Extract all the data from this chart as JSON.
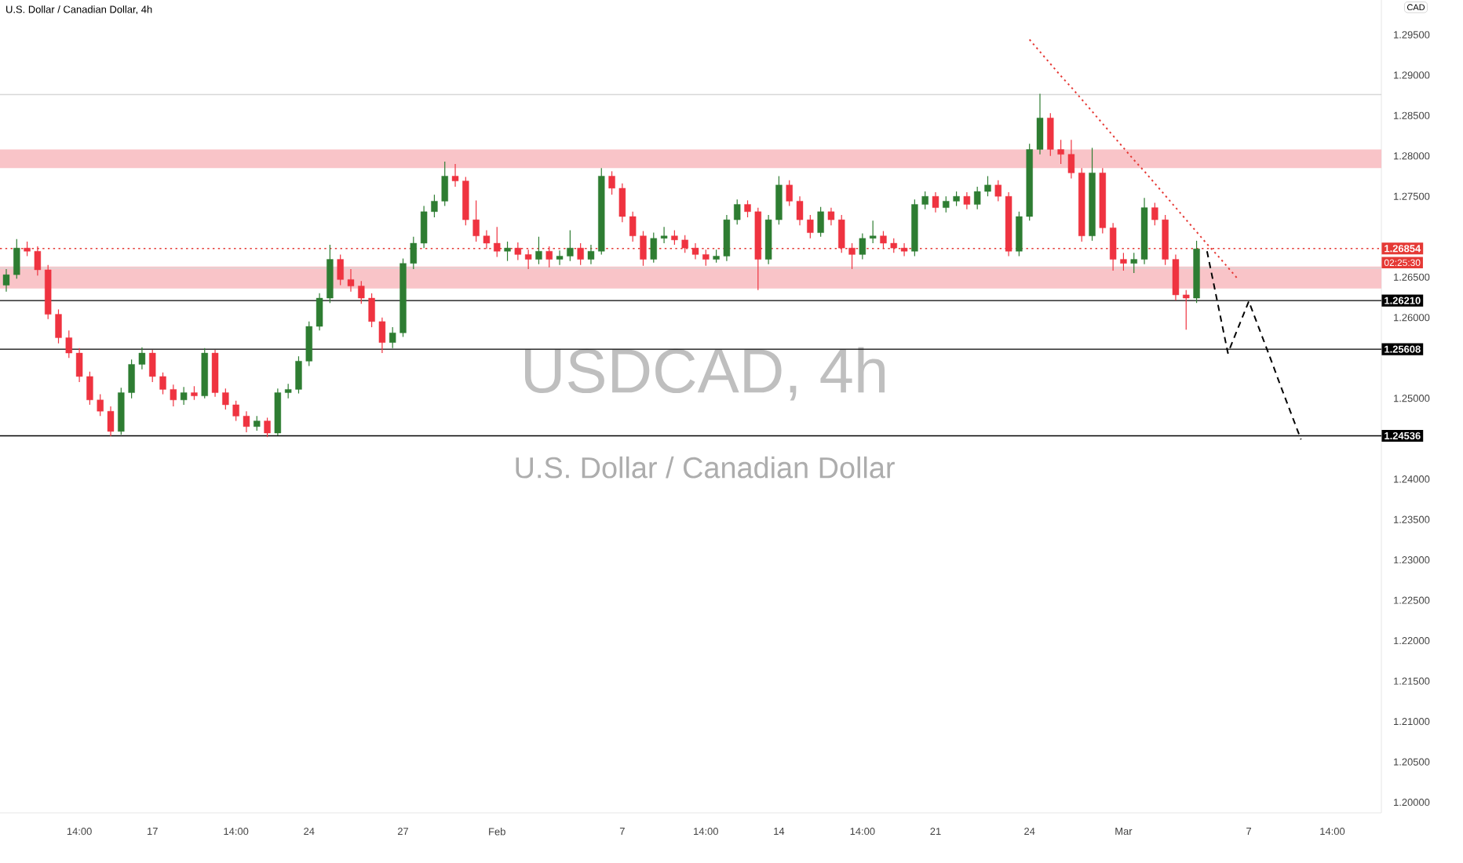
{
  "chart_data": {
    "type": "candlestick",
    "title": "U.S. Dollar / Canadian Dollar, 4h",
    "ylabel": "CAD",
    "annotations": [
      "USDCAD, 4h",
      "U.S. Dollar / Canadian Dollar",
      "02:25:30"
    ],
    "ylim": [
      1.1987,
      1.2993
    ],
    "yticks": [
      {
        "value": 1.2,
        "label": "1.20000"
      },
      {
        "value": 1.205,
        "label": "1.20500"
      },
      {
        "value": 1.21,
        "label": "1.21000"
      },
      {
        "value": 1.215,
        "label": "1.21500"
      },
      {
        "value": 1.22,
        "label": "1.22000"
      },
      {
        "value": 1.225,
        "label": "1.22500"
      },
      {
        "value": 1.23,
        "label": "1.23000"
      },
      {
        "value": 1.235,
        "label": "1.23500"
      },
      {
        "value": 1.24,
        "label": "1.24000"
      },
      {
        "value": 1.25,
        "label": "1.25000"
      },
      {
        "value": 1.26,
        "label": "1.26000"
      },
      {
        "value": 1.265,
        "label": "1.26500"
      },
      {
        "value": 1.275,
        "label": "1.27500"
      },
      {
        "value": 1.28,
        "label": "1.28000"
      },
      {
        "value": 1.285,
        "label": "1.28500"
      },
      {
        "value": 1.29,
        "label": "1.29000"
      },
      {
        "value": 1.295,
        "label": "1.29500"
      }
    ],
    "categories": [
      null,
      null,
      null,
      null,
      null,
      null,
      null,
      "14:00",
      null,
      null,
      null,
      null,
      null,
      null,
      "17",
      null,
      null,
      null,
      null,
      null,
      null,
      null,
      "14:00",
      null,
      null,
      null,
      null,
      null,
      null,
      "24",
      null,
      null,
      null,
      null,
      null,
      null,
      null,
      null,
      "27",
      null,
      null,
      null,
      null,
      null,
      null,
      null,
      null,
      "Feb",
      null,
      null,
      null,
      null,
      null,
      null,
      null,
      null,
      null,
      null,
      null,
      "7",
      null,
      null,
      null,
      null,
      null,
      null,
      null,
      "14:00",
      null,
      null,
      null,
      null,
      null,
      null,
      "14",
      null,
      null,
      null,
      null,
      null,
      null,
      null,
      "14:00",
      null,
      null,
      null,
      null,
      null,
      null,
      "21",
      null,
      null,
      null,
      null,
      null,
      null,
      null,
      null,
      "24",
      null,
      null,
      null,
      null,
      null,
      null,
      null,
      null,
      "Mar",
      null,
      null,
      null,
      null,
      null,
      null,
      null,
      null,
      null,
      null,
      null,
      "7",
      null,
      null,
      null,
      null,
      null,
      null,
      null,
      "14:00",
      null,
      null,
      null
    ],
    "ohlc": [
      [
        1.264,
        1.266,
        1.2632,
        1.2653
      ],
      [
        1.2653,
        1.2697,
        1.2648,
        1.2686
      ],
      [
        1.2686,
        1.2694,
        1.2676,
        1.2682
      ],
      [
        1.2682,
        1.2688,
        1.2652,
        1.2659
      ],
      [
        1.2659,
        1.2665,
        1.2598,
        1.2604
      ],
      [
        1.2604,
        1.261,
        1.2568,
        1.2575
      ],
      [
        1.2575,
        1.2584,
        1.255,
        1.2556
      ],
      [
        1.2556,
        1.2562,
        1.252,
        1.2527
      ],
      [
        1.2527,
        1.2533,
        1.2492,
        1.2498
      ],
      [
        1.2498,
        1.2505,
        1.2478,
        1.2484
      ],
      [
        1.2484,
        1.249,
        1.2453,
        1.2459
      ],
      [
        1.2459,
        1.2513,
        1.2455,
        1.2507
      ],
      [
        1.2507,
        1.2548,
        1.25,
        1.2542
      ],
      [
        1.2542,
        1.2563,
        1.2536,
        1.2556
      ],
      [
        1.2556,
        1.256,
        1.252,
        1.2527
      ],
      [
        1.2527,
        1.2532,
        1.2505,
        1.2511
      ],
      [
        1.2511,
        1.2517,
        1.249,
        1.2498
      ],
      [
        1.2498,
        1.2514,
        1.2492,
        1.2507
      ],
      [
        1.2507,
        1.2515,
        1.2498,
        1.2503
      ],
      [
        1.2503,
        1.2562,
        1.25,
        1.2556
      ],
      [
        1.2556,
        1.256,
        1.2502,
        1.2507
      ],
      [
        1.2507,
        1.2512,
        1.2486,
        1.2492
      ],
      [
        1.2492,
        1.2497,
        1.2472,
        1.2478
      ],
      [
        1.2478,
        1.2484,
        1.2458,
        1.2465
      ],
      [
        1.2465,
        1.2478,
        1.246,
        1.2472
      ],
      [
        1.2472,
        1.2476,
        1.2452,
        1.2457
      ],
      [
        1.2457,
        1.2512,
        1.2454,
        1.2507
      ],
      [
        1.2507,
        1.2518,
        1.25,
        1.2511
      ],
      [
        1.2511,
        1.2552,
        1.2506,
        1.2546
      ],
      [
        1.2546,
        1.2595,
        1.254,
        1.2589
      ],
      [
        1.2589,
        1.263,
        1.2584,
        1.2624
      ],
      [
        1.2624,
        1.269,
        1.2618,
        1.2672
      ],
      [
        1.2672,
        1.2678,
        1.264,
        1.2647
      ],
      [
        1.2647,
        1.266,
        1.2632,
        1.2639
      ],
      [
        1.2639,
        1.2645,
        1.2617,
        1.2624
      ],
      [
        1.2624,
        1.263,
        1.2588,
        1.2595
      ],
      [
        1.2595,
        1.26,
        1.2556,
        1.2569
      ],
      [
        1.2569,
        1.2588,
        1.2562,
        1.2581
      ],
      [
        1.2581,
        1.2673,
        1.2576,
        1.2667
      ],
      [
        1.2667,
        1.27,
        1.266,
        1.2692
      ],
      [
        1.2692,
        1.2738,
        1.2686,
        1.2731
      ],
      [
        1.2731,
        1.2752,
        1.2724,
        1.2744
      ],
      [
        1.2744,
        1.2793,
        1.2738,
        1.2775
      ],
      [
        1.2775,
        1.279,
        1.2762,
        1.2769
      ],
      [
        1.2769,
        1.2774,
        1.2714,
        1.2721
      ],
      [
        1.2721,
        1.2745,
        1.2694,
        1.2701
      ],
      [
        1.2701,
        1.2708,
        1.2685,
        1.2692
      ],
      [
        1.2692,
        1.2712,
        1.2675,
        1.2682
      ],
      [
        1.2682,
        1.2694,
        1.267,
        1.2686
      ],
      [
        1.2686,
        1.2693,
        1.2671,
        1.2678
      ],
      [
        1.2678,
        1.2684,
        1.266,
        1.2672
      ],
      [
        1.2672,
        1.27,
        1.2666,
        1.2682
      ],
      [
        1.2682,
        1.2688,
        1.2662,
        1.2672
      ],
      [
        1.2672,
        1.2683,
        1.2665,
        1.2676
      ],
      [
        1.2676,
        1.2708,
        1.267,
        1.2686
      ],
      [
        1.2686,
        1.2692,
        1.2665,
        1.2672
      ],
      [
        1.2672,
        1.269,
        1.2666,
        1.2682
      ],
      [
        1.2682,
        1.2785,
        1.2678,
        1.2775
      ],
      [
        1.2775,
        1.2781,
        1.2752,
        1.276
      ],
      [
        1.276,
        1.2766,
        1.2718,
        1.2725
      ],
      [
        1.2725,
        1.2731,
        1.2694,
        1.2701
      ],
      [
        1.2701,
        1.2707,
        1.2664,
        1.2672
      ],
      [
        1.2672,
        1.2705,
        1.2668,
        1.2698
      ],
      [
        1.2698,
        1.2712,
        1.2692,
        1.2701
      ],
      [
        1.2701,
        1.2708,
        1.269,
        1.2696
      ],
      [
        1.2696,
        1.2702,
        1.268,
        1.2686
      ],
      [
        1.2686,
        1.2692,
        1.2672,
        1.2678
      ],
      [
        1.2678,
        1.2684,
        1.2664,
        1.2672
      ],
      [
        1.2672,
        1.2684,
        1.2668,
        1.2676
      ],
      [
        1.2676,
        1.2727,
        1.267,
        1.2721
      ],
      [
        1.2721,
        1.2746,
        1.2715,
        1.274
      ],
      [
        1.274,
        1.2745,
        1.2724,
        1.2731
      ],
      [
        1.2731,
        1.2736,
        1.2634,
        1.2672
      ],
      [
        1.2672,
        1.2727,
        1.2666,
        1.2721
      ],
      [
        1.2721,
        1.2775,
        1.2715,
        1.2764
      ],
      [
        1.2764,
        1.277,
        1.2738,
        1.2744
      ],
      [
        1.2744,
        1.275,
        1.2714,
        1.2721
      ],
      [
        1.2721,
        1.2727,
        1.2698,
        1.2705
      ],
      [
        1.2705,
        1.2737,
        1.27,
        1.2731
      ],
      [
        1.2731,
        1.2736,
        1.2714,
        1.2721
      ],
      [
        1.2721,
        1.2727,
        1.268,
        1.2686
      ],
      [
        1.2686,
        1.2692,
        1.266,
        1.2678
      ],
      [
        1.2678,
        1.2704,
        1.2672,
        1.2698
      ],
      [
        1.2698,
        1.272,
        1.2692,
        1.2701
      ],
      [
        1.2701,
        1.2707,
        1.2686,
        1.2692
      ],
      [
        1.2692,
        1.2698,
        1.268,
        1.2686
      ],
      [
        1.2686,
        1.2692,
        1.2676,
        1.2682
      ],
      [
        1.2682,
        1.2746,
        1.2676,
        1.274
      ],
      [
        1.274,
        1.2756,
        1.2734,
        1.275
      ],
      [
        1.275,
        1.2755,
        1.273,
        1.2736
      ],
      [
        1.2736,
        1.275,
        1.273,
        1.2744
      ],
      [
        1.2744,
        1.2756,
        1.2738,
        1.275
      ],
      [
        1.275,
        1.2755,
        1.2734,
        1.274
      ],
      [
        1.274,
        1.2762,
        1.2734,
        1.2756
      ],
      [
        1.2756,
        1.2775,
        1.275,
        1.2764
      ],
      [
        1.2764,
        1.277,
        1.2744,
        1.275
      ],
      [
        1.275,
        1.2755,
        1.2676,
        1.2682
      ],
      [
        1.2682,
        1.2731,
        1.2676,
        1.2725
      ],
      [
        1.2725,
        1.2815,
        1.272,
        1.2808
      ],
      [
        1.2808,
        1.2877,
        1.2802,
        1.2847
      ],
      [
        1.2847,
        1.2853,
        1.28,
        1.2808
      ],
      [
        1.2808,
        1.282,
        1.279,
        1.2802
      ],
      [
        1.2802,
        1.282,
        1.2772,
        1.2779
      ],
      [
        1.2779,
        1.2785,
        1.2694,
        1.2701
      ],
      [
        1.2701,
        1.281,
        1.2695,
        1.2779
      ],
      [
        1.2779,
        1.2785,
        1.2704,
        1.2711
      ],
      [
        1.2711,
        1.2717,
        1.2658,
        1.2672
      ],
      [
        1.2672,
        1.268,
        1.2658,
        1.2667
      ],
      [
        1.2667,
        1.268,
        1.2655,
        1.2672
      ],
      [
        1.2672,
        1.2748,
        1.2666,
        1.2736
      ],
      [
        1.2736,
        1.2742,
        1.2714,
        1.2721
      ],
      [
        1.2721,
        1.2727,
        1.2665,
        1.2672
      ],
      [
        1.2672,
        1.2678,
        1.2621,
        1.2628
      ],
      [
        1.2628,
        1.2634,
        1.2585,
        1.2624
      ],
      [
        1.2624,
        1.2695,
        1.2618,
        1.2685
      ],
      null,
      null,
      null,
      null,
      null,
      null,
      null,
      null,
      null,
      null,
      null,
      null,
      null,
      null,
      null,
      null
    ],
    "colors": [
      "#2e7d32",
      "#2e7d32",
      "#ef3340",
      "#ef3340",
      "#ef3340",
      "#ef3340",
      "#ef3340",
      "#ef3340",
      "#ef3340",
      "#ef3340",
      "#ef3340",
      "#2e7d32",
      "#2e7d32",
      "#2e7d32",
      "#ef3340",
      "#ef3340",
      "#ef3340",
      "#2e7d32",
      "#ef3340",
      "#2e7d32",
      "#ef3340",
      "#ef3340",
      "#ef3340",
      "#ef3340",
      "#2e7d32",
      "#ef3340",
      "#2e7d32",
      "#2e7d32",
      "#2e7d32",
      "#2e7d32",
      "#2e7d32",
      "#2e7d32",
      "#ef3340",
      "#ef3340",
      "#ef3340",
      "#ef3340",
      "#ef3340",
      "#2e7d32",
      "#2e7d32",
      "#2e7d32",
      "#2e7d32",
      "#2e7d32",
      "#2e7d32",
      "#ef3340",
      "#ef3340",
      "#ef3340",
      "#ef3340",
      "#ef3340",
      "#2e7d32",
      "#ef3340",
      "#ef3340",
      "#2e7d32",
      "#ef3340",
      "#2e7d32",
      "#2e7d32",
      "#ef3340",
      "#2e7d32",
      "#2e7d32",
      "#ef3340",
      "#ef3340",
      "#ef3340",
      "#ef3340",
      "#2e7d32",
      "#2e7d32",
      "#ef3340",
      "#ef3340",
      "#ef3340",
      "#ef3340",
      "#2e7d32",
      "#2e7d32",
      "#2e7d32",
      "#ef3340",
      "#ef3340",
      "#2e7d32",
      "#2e7d32",
      "#ef3340",
      "#ef3340",
      "#ef3340",
      "#2e7d32",
      "#ef3340",
      "#ef3340",
      "#ef3340",
      "#2e7d32",
      "#2e7d32",
      "#ef3340",
      "#ef3340",
      "#ef3340",
      "#2e7d32",
      "#2e7d32",
      "#ef3340",
      "#2e7d32",
      "#2e7d32",
      "#ef3340",
      "#2e7d32",
      "#2e7d32",
      "#ef3340",
      "#ef3340",
      "#2e7d32",
      "#2e7d32",
      "#2e7d32",
      "#ef3340",
      "#ef3340",
      "#ef3340",
      "#ef3340",
      "#2e7d32",
      "#ef3340",
      "#ef3340",
      "#ef3340",
      "#2e7d32",
      "#2e7d32",
      "#ef3340",
      "#ef3340",
      "#ef3340",
      "#ef3340",
      "#2e7d32",
      null,
      null,
      null,
      null,
      null,
      null,
      null,
      null,
      null,
      null,
      null,
      null,
      null,
      null,
      null,
      null
    ],
    "bands": [
      {
        "axis": "y",
        "from": 1.2785,
        "to": 1.2808,
        "color": "#f9c4c8"
      },
      {
        "axis": "y",
        "from": 1.2636,
        "to": 1.2663,
        "color": "#f9c4c8"
      }
    ],
    "ref_lines": [
      {
        "axis": "y",
        "value": 1.26854,
        "label": "1.26854",
        "color": "#e53935",
        "line_style": "dotted"
      },
      {
        "axis": "y",
        "value": 1.2621,
        "label": "1.26210",
        "color": "#000000"
      },
      {
        "axis": "y",
        "value": 1.25608,
        "label": "1.25608",
        "color": "#000000"
      },
      {
        "axis": "y",
        "value": 1.24536,
        "label": "1.24536",
        "color": "#000000"
      },
      {
        "axis": "y",
        "value": 1.2876,
        "color": "#d8d8d8"
      },
      {
        "axis": "y",
        "value": 1.2661,
        "color": "#d8d8d8"
      }
    ],
    "series": [
      {
        "type": "line",
        "color": "#e53935",
        "line_style": "dotted",
        "values": [
          null,
          null,
          null,
          null,
          null,
          null,
          null,
          null,
          null,
          null,
          null,
          null,
          null,
          null,
          null,
          null,
          null,
          null,
          null,
          null,
          null,
          null,
          null,
          null,
          null,
          null,
          null,
          null,
          null,
          null,
          null,
          null,
          null,
          null,
          null,
          null,
          null,
          null,
          null,
          null,
          null,
          null,
          null,
          null,
          null,
          null,
          null,
          null,
          null,
          null,
          null,
          null,
          null,
          null,
          null,
          null,
          null,
          null,
          null,
          null,
          null,
          null,
          null,
          null,
          null,
          null,
          null,
          null,
          null,
          null,
          null,
          null,
          null,
          null,
          null,
          null,
          null,
          null,
          null,
          null,
          null,
          null,
          null,
          null,
          null,
          null,
          null,
          null,
          null,
          null,
          null,
          null,
          null,
          null,
          null,
          null,
          null,
          null,
          1.2944,
          1.2929,
          1.2914,
          1.2899,
          1.2885,
          1.287,
          1.2855,
          1.284,
          1.2825,
          1.281,
          1.2795,
          1.2781,
          1.2766,
          1.2751,
          1.2736,
          1.2721,
          1.2706,
          1.2691,
          1.2677,
          1.2662,
          1.2647,
          null,
          null,
          null,
          null,
          null,
          null,
          null,
          null,
          null,
          null,
          null,
          null
        ]
      },
      {
        "type": "line",
        "color": "#000000",
        "line_style": "dashed",
        "values": [
          null,
          null,
          null,
          null,
          null,
          null,
          null,
          null,
          null,
          null,
          null,
          null,
          null,
          null,
          null,
          null,
          null,
          null,
          null,
          null,
          null,
          null,
          null,
          null,
          null,
          null,
          null,
          null,
          null,
          null,
          null,
          null,
          null,
          null,
          null,
          null,
          null,
          null,
          null,
          null,
          null,
          null,
          null,
          null,
          null,
          null,
          null,
          null,
          null,
          null,
          null,
          null,
          null,
          null,
          null,
          null,
          null,
          null,
          null,
          null,
          null,
          null,
          null,
          null,
          null,
          null,
          null,
          null,
          null,
          null,
          null,
          null,
          null,
          null,
          null,
          null,
          null,
          null,
          null,
          null,
          null,
          null,
          null,
          null,
          null,
          null,
          null,
          null,
          null,
          null,
          null,
          null,
          null,
          null,
          null,
          null,
          null,
          null,
          null,
          null,
          null,
          null,
          null,
          null,
          null,
          null,
          null,
          null,
          null,
          null,
          null,
          null,
          null,
          null,
          null,
          1.2682,
          1.2619,
          1.2556,
          1.2588,
          1.262,
          1.2586,
          1.2552,
          1.2517,
          1.2483,
          1.2449,
          null,
          null,
          null,
          null,
          null,
          null
        ]
      }
    ]
  }
}
